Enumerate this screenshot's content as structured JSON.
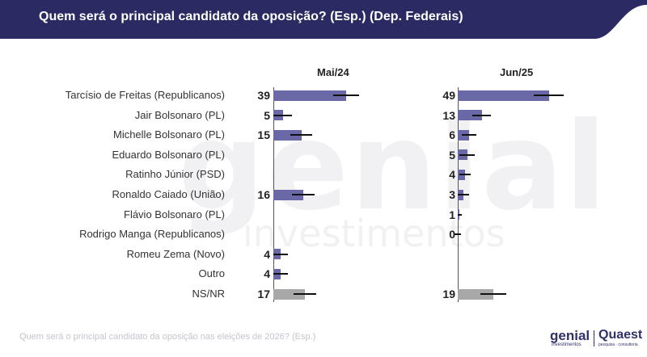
{
  "title": "Quem será o principal candidato da oposição? (Esp.) (Dep. Federais)",
  "footer": "Quem será o principal candidato da oposição nas eleições de 2026? (Esp.)",
  "watermark": {
    "main": "genial",
    "sub": "investimentos"
  },
  "logos": {
    "genial": "genial",
    "genial_sub": "investimentos",
    "quaest": "Quaest",
    "quaest_sub": "pesquisa · consultoria"
  },
  "colors": {
    "header": "#2b2a63",
    "bar": "#6b68a8",
    "bar_nsnr": "#a8a8a8",
    "error": "#111111"
  },
  "chart_data": {
    "type": "bar",
    "orientation": "horizontal",
    "categories": [
      "Tarcísio de Freitas (Republicanos)",
      "Jair Bolsonaro (PL)",
      "Michelle Bolsonaro (PL)",
      "Eduardo Bolsonaro (PL)",
      "Ratinho Júnior (PSD)",
      "Ronaldo Caiado (União)",
      "Flávio Bolsonaro (PL)",
      "Rodrigo Manga (Republicanos)",
      "Romeu Zema (Novo)",
      "Outro",
      "NS/NR"
    ],
    "series": [
      {
        "name": "Mai/24",
        "values": [
          39,
          5,
          15,
          null,
          null,
          16,
          null,
          null,
          4,
          4,
          17
        ],
        "labels": [
          "39",
          "5",
          "15",
          "",
          "",
          "16",
          "",
          "",
          "4",
          "4",
          "17"
        ],
        "error": [
          7,
          5,
          6,
          null,
          null,
          6,
          null,
          null,
          4,
          4,
          6
        ]
      },
      {
        "name": "Jun/25",
        "values": [
          49,
          13,
          6,
          5,
          4,
          3,
          1,
          0,
          null,
          null,
          19
        ],
        "labels": [
          "49",
          "13",
          "6",
          "5",
          "4",
          "3",
          "1",
          "0",
          "",
          "",
          "19"
        ],
        "error": [
          8,
          5,
          4,
          4,
          3,
          3,
          1,
          0,
          null,
          null,
          7
        ]
      }
    ],
    "xlim": [
      0,
      60
    ],
    "grid": false,
    "legend": "none"
  }
}
